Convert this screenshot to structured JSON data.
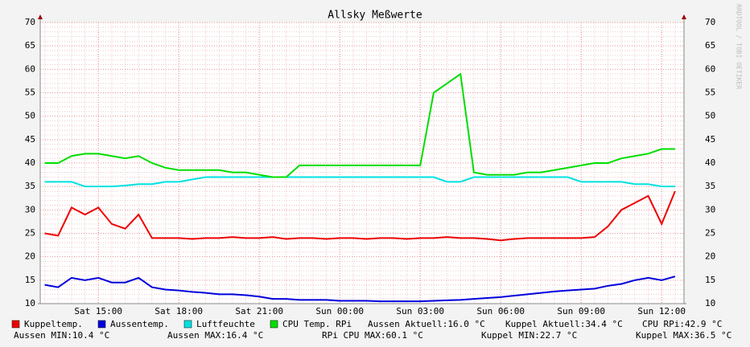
{
  "chart_data": {
    "type": "line",
    "title": "Allsky Meßwerte",
    "categories": [
      null,
      null,
      null,
      null,
      "Sat 15:00",
      null,
      null,
      null,
      null,
      null,
      "Sat 18:00",
      null,
      null,
      null,
      null,
      null,
      "Sat 21:00",
      null,
      null,
      null,
      null,
      null,
      "Sun 00:00",
      null,
      null,
      null,
      null,
      null,
      "Sun 03:00",
      null,
      null,
      null,
      null,
      null,
      "Sun 06:00",
      null,
      null,
      null,
      null,
      null,
      "Sun 09:00",
      null,
      null,
      null,
      null,
      null,
      "Sun 12:00",
      null
    ],
    "series": [
      {
        "name": "Kuppeltemp.",
        "color": "#ee0000",
        "values": [
          25,
          24.5,
          30.5,
          29,
          30.5,
          27,
          26,
          29,
          24,
          24,
          24,
          23.8,
          24,
          24,
          24.2,
          24,
          24,
          24.2,
          23.8,
          24,
          24,
          23.8,
          24,
          24,
          23.8,
          24,
          24,
          23.8,
          24,
          24,
          24.2,
          24,
          24,
          23.8,
          23.5,
          23.8,
          24,
          24,
          24,
          24,
          24,
          24.2,
          26.5,
          30,
          31.5,
          33,
          27,
          34
        ]
      },
      {
        "name": "Aussentemp.",
        "color": "#0000dd",
        "values": [
          14,
          13.5,
          15.5,
          15,
          15.5,
          14.5,
          14.5,
          15.5,
          13.5,
          13,
          12.8,
          12.5,
          12.3,
          12,
          12,
          11.8,
          11.5,
          11,
          11,
          10.8,
          10.8,
          10.8,
          10.6,
          10.6,
          10.6,
          10.5,
          10.5,
          10.5,
          10.5,
          10.6,
          10.7,
          10.8,
          11,
          11.2,
          11.4,
          11.7,
          12,
          12.3,
          12.6,
          12.8,
          13,
          13.2,
          13.8,
          14.2,
          15,
          15.5,
          15,
          15.8
        ]
      },
      {
        "name": "Luftfeuchte",
        "color": "#00e0e0",
        "values": [
          36,
          36,
          36,
          35,
          35,
          35,
          35.2,
          35.5,
          35.5,
          36,
          36,
          36.5,
          37,
          37,
          37,
          37,
          37,
          37,
          37,
          37,
          37,
          37,
          37,
          37,
          37,
          37,
          37,
          37,
          37,
          37,
          36,
          36,
          37,
          37,
          37,
          37,
          37,
          37,
          37,
          37,
          36,
          36,
          36,
          36,
          35.5,
          35.5,
          35,
          35
        ]
      },
      {
        "name": "CPU Temp. RPi",
        "color": "#00dd00",
        "values": [
          40,
          40,
          41.5,
          42,
          42,
          41.5,
          41,
          41.5,
          40,
          39,
          38.5,
          38.5,
          38.5,
          38.5,
          38,
          38,
          37.5,
          37,
          37,
          39.5,
          39.5,
          39.5,
          39.5,
          39.5,
          39.5,
          39.5,
          39.5,
          39.5,
          39.5,
          55,
          57,
          59,
          38,
          37.5,
          37.5,
          37.5,
          38,
          38,
          38.5,
          39,
          39.5,
          40,
          40,
          41,
          41.5,
          42,
          43,
          43
        ]
      }
    ],
    "ylim": [
      10,
      70
    ],
    "yticks": [
      10,
      15,
      20,
      25,
      30,
      35,
      40,
      45,
      50,
      55,
      60,
      65,
      70
    ],
    "grid": true,
    "annotations": [
      "Aussen Aktuell:16.0 °C",
      "Kuppel Aktuell:34.4 °C",
      "CPU RPi:42.9 °C",
      "Aussen MIN:10.4 °C",
      "Aussen MAX:16.4 °C",
      "RPi CPU MAX:60.1 °C",
      "Kuppel MIN:22.7 °C",
      "Kuppel MAX:36.5 °C"
    ],
    "watermark": "RRDTOOL / TOBI OETIKER"
  }
}
